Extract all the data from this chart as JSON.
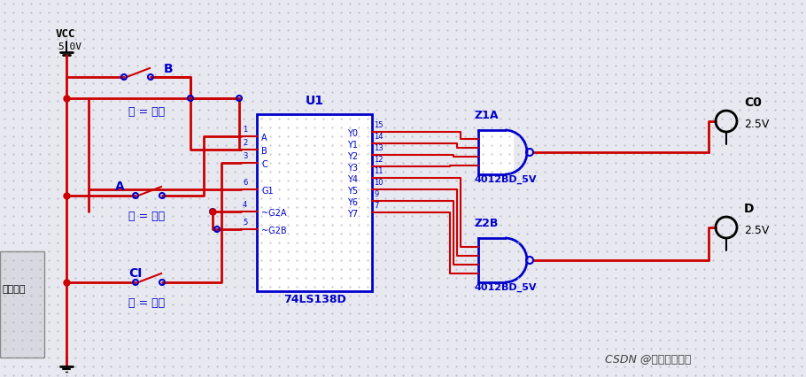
{
  "bg_color": "#e8e8f0",
  "dot_color": "#b0b0c0",
  "wire_color": "#cc0000",
  "blue_color": "#0000cc",
  "black_color": "#000000",
  "title": "",
  "vcc_label": "VCC",
  "vcc_voltage": "5.0V",
  "switch_labels": [
    "B",
    "A",
    "CI"
  ],
  "key_labels": [
    "键 = 空格",
    "键 = 空格",
    "键 = 空格"
  ],
  "ic_label": "U1",
  "ic_name": "74LS138D",
  "ic_pins_left": [
    "A",
    "B",
    "C",
    "G1",
    "~G2A",
    "~G2B"
  ],
  "ic_pins_right": [
    "Y0",
    "Y1",
    "Y2",
    "Y3",
    "Y4",
    "Y5",
    "Y6",
    "Y7"
  ],
  "ic_pin_nums_left": [
    "1",
    "2",
    "3",
    "6",
    "4",
    "5"
  ],
  "ic_pin_nums_right": [
    "15",
    "14",
    "13",
    "12",
    "11",
    "10",
    "9",
    "7"
  ],
  "gate1_label": "Z1A",
  "gate1_type": "4012BD_5V",
  "gate2_label": "Z2B",
  "gate2_type": "4012BD_5V",
  "output1_label": "C0",
  "output1_voltage": "2.5V",
  "output2_label": "D",
  "output2_voltage": "2.5V",
  "csdn_label": "CSDN @付与朝钟暮鼓",
  "watermark_color": "#404040"
}
